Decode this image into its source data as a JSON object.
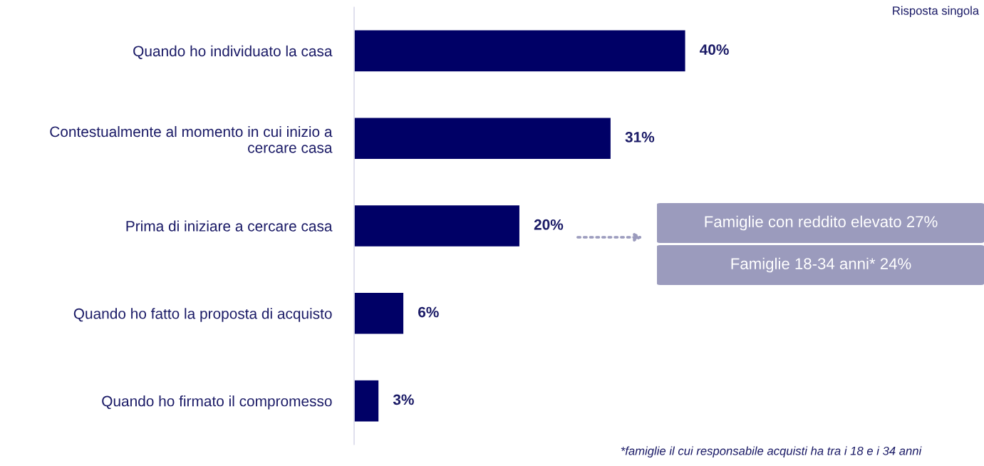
{
  "chart_data": {
    "type": "bar",
    "orientation": "horizontal",
    "categories": [
      "Quando ho individuato la casa",
      "Contestualmente al momento in cui inizio a\ncercare casa",
      "Prima di iniziare a cercare casa",
      "Quando ho fatto la proposta di acquisto",
      "Quando ho firmato il compromesso"
    ],
    "values": [
      40,
      31,
      20,
      6,
      3
    ],
    "value_labels": [
      "40%",
      "31%",
      "20%",
      "6%",
      "3%"
    ],
    "color": "#000066",
    "annotations": [
      "Risposta singola",
      "Famiglie con reddito elevato 27%",
      "Famiglie 18-34 anni* 24%",
      "*famiglie il cui responsabile acquisti ha tra i 18 e i 34 anni"
    ],
    "grid": false,
    "legend": false
  }
}
